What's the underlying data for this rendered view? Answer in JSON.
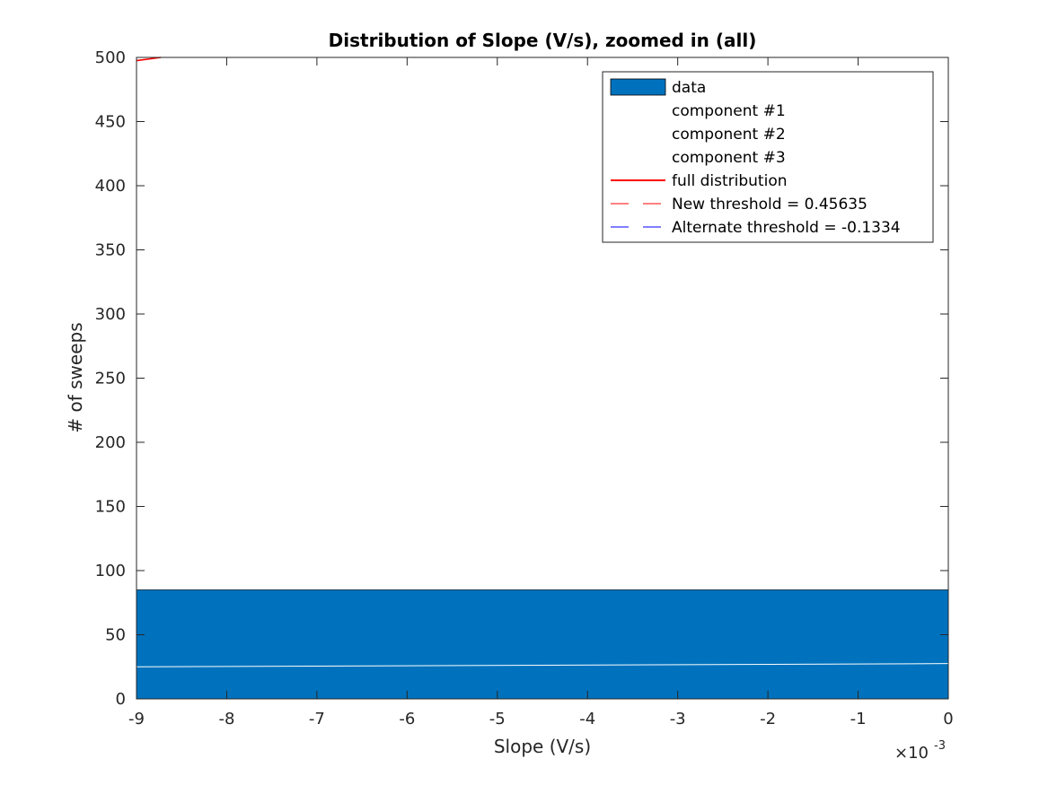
{
  "chart_data": {
    "type": "bar",
    "title": "Distribution of Slope (V/s), zoomed in (all)",
    "xlabel": "Slope (V/s)",
    "ylabel": "# of sweeps",
    "xlim": [
      -0.009,
      0
    ],
    "ylim": [
      0,
      500
    ],
    "x_exponent_label": "×10",
    "x_exponent_power": "-3",
    "x_ticks": [
      -9,
      -8,
      -7,
      -6,
      -5,
      -4,
      -3,
      -2,
      -1,
      0
    ],
    "x_tick_labels": [
      "-9",
      "-8",
      "-7",
      "-6",
      "-5",
      "-4",
      "-3",
      "-2",
      "-1",
      "0"
    ],
    "y_ticks": [
      0,
      50,
      100,
      150,
      200,
      250,
      300,
      350,
      400,
      450,
      500
    ],
    "y_tick_labels": [
      "0",
      "50",
      "100",
      "150",
      "200",
      "250",
      "300",
      "350",
      "400",
      "450",
      "500"
    ],
    "grid": false,
    "legend_position": "top-right",
    "series": [
      {
        "name": "data",
        "kind": "histogram-bar",
        "color": "#0072BD",
        "bins": [
          {
            "x0": -0.009,
            "x1": 0,
            "count": 85
          }
        ]
      },
      {
        "name": "component #1",
        "kind": "line",
        "color": "#ffffff",
        "x": [
          -0.009,
          0
        ],
        "y": [
          25,
          27.5
        ]
      },
      {
        "name": "component #2",
        "kind": "line",
        "color": "#ffffff",
        "x": [],
        "y": []
      },
      {
        "name": "component #3",
        "kind": "line",
        "color": "#ffffff",
        "x": [],
        "y": []
      },
      {
        "name": "full distribution",
        "kind": "line",
        "color": "#ff0000",
        "x": [
          -0.009,
          -0.00873
        ],
        "y": [
          497.5,
          500
        ]
      },
      {
        "name": "New threshold = 0.45635",
        "kind": "dashed-line",
        "color": "#ff0000",
        "x": [],
        "y": []
      },
      {
        "name": "Alternate threshold = -0.1334",
        "kind": "dashed-line",
        "color": "#0000ff",
        "x": [],
        "y": []
      }
    ]
  }
}
